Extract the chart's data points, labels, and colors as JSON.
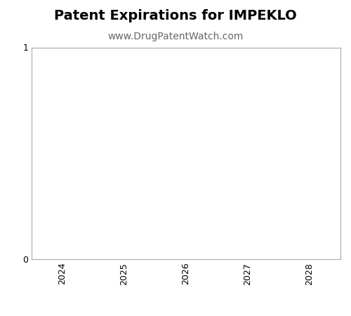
{
  "title": "Patent Expirations for IMPEKLO",
  "subtitle": "www.DrugPatentWatch.com",
  "xlim": [
    2023.5,
    2028.5
  ],
  "ylim": [
    0,
    1
  ],
  "xticks": [
    2024,
    2025,
    2026,
    2027,
    2028
  ],
  "yticks": [
    0,
    1
  ],
  "background_color": "#ffffff",
  "plot_bg_color": "#ffffff",
  "border_color": "#aaaaaa",
  "title_fontsize": 14,
  "subtitle_fontsize": 10,
  "tick_fontsize": 9
}
